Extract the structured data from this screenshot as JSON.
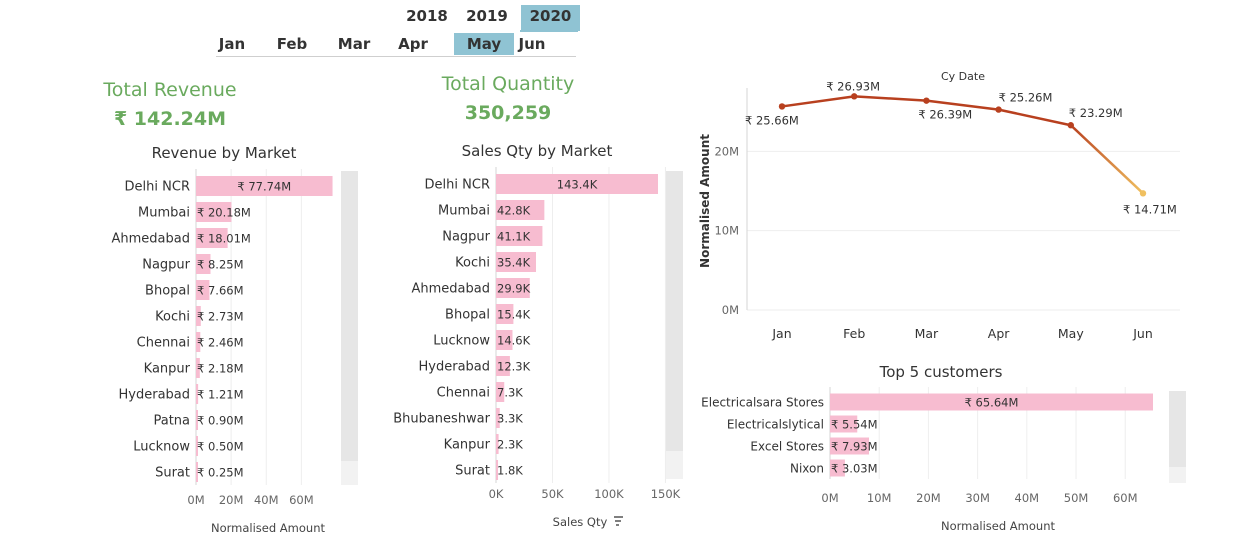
{
  "filters": {
    "years": [
      {
        "label": "2018",
        "selected": false
      },
      {
        "label": "2019",
        "selected": false
      },
      {
        "label": "2020",
        "selected": true
      }
    ],
    "months": [
      {
        "label": "Jan",
        "selected": false
      },
      {
        "label": "Feb",
        "selected": false
      },
      {
        "label": "Mar",
        "selected": false
      },
      {
        "label": "Apr",
        "selected": false
      },
      {
        "label": "May",
        "selected": true
      },
      {
        "label": "Jun",
        "selected": false
      }
    ]
  },
  "kpis": {
    "revenue_title": "Total Revenue",
    "revenue_value": "₹ 142.24M",
    "quantity_title": "Total Quantity",
    "quantity_value": "350,259"
  },
  "colors": {
    "bar": "#f7bcd0",
    "kpi": "#6aaa5e",
    "selected": "#8fc3d3",
    "line_start": "#b8401f",
    "line_end": "#f0c060"
  },
  "chart_data": [
    {
      "type": "bar",
      "orientation": "horizontal",
      "title": "Revenue by Market",
      "xlabel": "Normalised Amount",
      "categories": [
        "Delhi NCR",
        "Mumbai",
        "Ahmedabad",
        "Nagpur",
        "Bhopal",
        "Kochi",
        "Chennai",
        "Kanpur",
        "Hyderabad",
        "Patna",
        "Lucknow",
        "Surat"
      ],
      "values": [
        77.74,
        20.18,
        18.01,
        8.25,
        7.66,
        2.73,
        2.46,
        2.18,
        1.21,
        0.9,
        0.5,
        0.25
      ],
      "labels": [
        "₹ 77.74M",
        "₹ 20.18M",
        "₹ 18.01M",
        "₹ 8.25M",
        "₹ 7.66M",
        "₹ 2.73M",
        "₹ 2.46M",
        "₹ 2.18M",
        "₹ 1.21M",
        "₹ 0.90M",
        "₹ 0.50M",
        "₹ 0.25M"
      ],
      "xlim": [
        0,
        78
      ],
      "xticks": [
        "0M",
        "20M",
        "40M",
        "60M"
      ],
      "xtick_values": [
        0,
        20,
        40,
        60
      ]
    },
    {
      "type": "bar",
      "orientation": "horizontal",
      "title": "Sales Qty by Market",
      "xlabel": "Sales Qty",
      "categories": [
        "Delhi NCR",
        "Mumbai",
        "Nagpur",
        "Kochi",
        "Ahmedabad",
        "Bhopal",
        "Lucknow",
        "Hyderabad",
        "Chennai",
        "Bhubaneshwar",
        "Kanpur",
        "Surat"
      ],
      "values": [
        143.4,
        42.8,
        41.1,
        35.4,
        29.9,
        15.4,
        14.6,
        12.3,
        7.3,
        3.3,
        2.3,
        1.8
      ],
      "labels": [
        "143.4K",
        "42.8K",
        "41.1K",
        "35.4K",
        "29.9K",
        "15.4K",
        "14.6K",
        "12.3K",
        "7.3K",
        "3.3K",
        "2.3K",
        "1.8K"
      ],
      "xlim": [
        0,
        143.4
      ],
      "xticks": [
        "0K",
        "50K",
        "100K",
        "150K"
      ],
      "xtick_values": [
        0,
        50,
        100,
        150
      ]
    },
    {
      "type": "line",
      "title": "Cy Date",
      "ylabel": "Normalised Amount",
      "x": [
        "Jan",
        "Feb",
        "Mar",
        "Apr",
        "May",
        "Jun"
      ],
      "values": [
        25.66,
        26.93,
        26.39,
        25.26,
        23.29,
        14.71
      ],
      "labels": [
        "₹ 25.66M",
        "₹ 26.93M",
        "₹ 26.39M",
        "₹ 25.26M",
        "₹ 23.29M",
        "₹ 14.71M"
      ],
      "ylim": [
        0,
        30
      ],
      "yticks": [
        "0M",
        "10M",
        "20M"
      ],
      "ytick_values": [
        0,
        10,
        20
      ]
    },
    {
      "type": "bar",
      "orientation": "horizontal",
      "title": "Top 5 customers",
      "xlabel": "Normalised Amount",
      "categories": [
        "Electricalsara Stores",
        "Electricalslytical",
        "Excel Stores",
        "Nixon"
      ],
      "values": [
        65.64,
        5.54,
        7.93,
        3.03
      ],
      "labels": [
        "₹ 65.64M",
        "₹ 5.54M",
        "₹ 7.93M",
        "₹ 3.03M"
      ],
      "xlim": [
        0,
        65.64
      ],
      "xticks": [
        "0M",
        "10M",
        "20M",
        "30M",
        "40M",
        "50M",
        "60M"
      ],
      "xtick_values": [
        0,
        10,
        20,
        30,
        40,
        50,
        60
      ]
    }
  ]
}
